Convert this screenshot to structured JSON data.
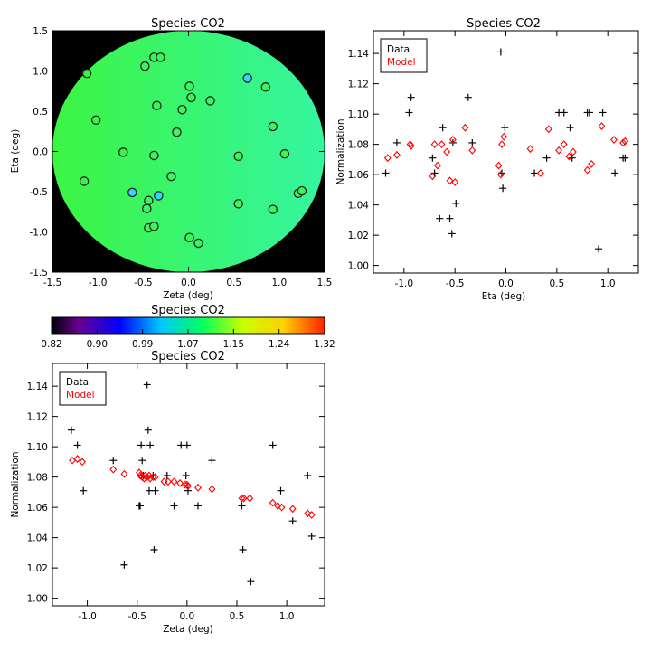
{
  "chart_data": [
    {
      "type": "scatter",
      "title": "Species CO2",
      "xlabel": "Zeta (deg)",
      "ylabel": "Eta (deg)",
      "xlim": [
        -1.5,
        1.5
      ],
      "ylim": [
        -1.5,
        1.5
      ],
      "xticks": [
        -1.5,
        -1.0,
        -0.5,
        0.0,
        0.5,
        1.0,
        1.5
      ],
      "xtick_labels": [
        "-1.5",
        "-1.0",
        "-0.5",
        "0.0",
        "0.5",
        "1.0",
        "1.5"
      ],
      "yticks": [
        -1.5,
        -1.0,
        -0.5,
        0.0,
        0.5,
        1.0,
        1.5
      ],
      "ytick_labels": [
        "-1.5",
        "-1.0",
        "-0.5",
        "0.0",
        "0.5",
        "1.0",
        "1.5"
      ],
      "background": "black outside a circular green-to-cyan model field",
      "field_colors": [
        "#3cf542",
        "#35f5a0"
      ],
      "points": [
        {
          "zeta": -1.12,
          "eta": 0.97,
          "color": "#38f545"
        },
        {
          "zeta": -1.02,
          "eta": 0.39,
          "color": "#38f545"
        },
        {
          "zeta": -1.15,
          "eta": -0.37,
          "color": "#38f545"
        },
        {
          "zeta": -0.72,
          "eta": -0.01,
          "color": "#38f545"
        },
        {
          "zeta": -0.48,
          "eta": 1.06,
          "color": "#3cf55a"
        },
        {
          "zeta": -0.38,
          "eta": 1.17,
          "color": "#3cf55a"
        },
        {
          "zeta": -0.31,
          "eta": 1.17,
          "color": "#3cf55a"
        },
        {
          "zeta": -0.35,
          "eta": 0.57,
          "color": "#3cf55a"
        },
        {
          "zeta": -0.38,
          "eta": -0.05,
          "color": "#3cf55a"
        },
        {
          "zeta": -0.62,
          "eta": -0.51,
          "color": "#30d8ff"
        },
        {
          "zeta": -0.33,
          "eta": -0.55,
          "color": "#30d8ff"
        },
        {
          "zeta": -0.44,
          "eta": -0.61,
          "color": "#3cf55a"
        },
        {
          "zeta": -0.46,
          "eta": -0.71,
          "color": "#3cf55a"
        },
        {
          "zeta": -0.44,
          "eta": -0.95,
          "color": "#3cf55a"
        },
        {
          "zeta": -0.38,
          "eta": -0.93,
          "color": "#3cf55a"
        },
        {
          "zeta": -0.19,
          "eta": -0.31,
          "color": "#3cf55a"
        },
        {
          "zeta": -0.13,
          "eta": 0.24,
          "color": "#3cf55a"
        },
        {
          "zeta": -0.07,
          "eta": 0.52,
          "color": "#3cf55a"
        },
        {
          "zeta": 0.01,
          "eta": 0.81,
          "color": "#3cf55a"
        },
        {
          "zeta": 0.03,
          "eta": 0.67,
          "color": "#3cf55a"
        },
        {
          "zeta": 0.24,
          "eta": 0.63,
          "color": "#3cf55a"
        },
        {
          "zeta": 0.01,
          "eta": -1.07,
          "color": "#3cf55a"
        },
        {
          "zeta": 0.11,
          "eta": -1.14,
          "color": "#3cf55a"
        },
        {
          "zeta": 0.55,
          "eta": -0.06,
          "color": "#3cf55a"
        },
        {
          "zeta": 0.55,
          "eta": -0.65,
          "color": "#3cf55a"
        },
        {
          "zeta": 0.65,
          "eta": 0.91,
          "color": "#30d8ff"
        },
        {
          "zeta": 0.85,
          "eta": 0.8,
          "color": "#3cf55a"
        },
        {
          "zeta": 0.93,
          "eta": 0.31,
          "color": "#3cf55a"
        },
        {
          "zeta": 1.06,
          "eta": -0.03,
          "color": "#3cf55a"
        },
        {
          "zeta": 0.93,
          "eta": -0.72,
          "color": "#3cf55a"
        },
        {
          "zeta": 1.21,
          "eta": -0.52,
          "color": "#3cf55a"
        },
        {
          "zeta": 1.25,
          "eta": -0.49,
          "color": "#3cf55a"
        }
      ]
    },
    {
      "type": "scatter",
      "title": "Species CO2",
      "xlabel": "Eta (deg)",
      "ylabel": "Normalization",
      "xlim": [
        -1.3,
        1.3
      ],
      "ylim": [
        0.995,
        1.155
      ],
      "xticks": [
        -1.0,
        -0.5,
        0.0,
        0.5,
        1.0
      ],
      "xtick_labels": [
        "-1.0",
        "-0.5",
        "0.0",
        "0.5",
        "1.0"
      ],
      "yticks": [
        1.0,
        1.02,
        1.04,
        1.06,
        1.08,
        1.1,
        1.12,
        1.14
      ],
      "ytick_labels": [
        "1.00",
        "1.02",
        "1.04",
        "1.06",
        "1.08",
        "1.10",
        "1.12",
        "1.14"
      ],
      "legend": [
        "Data",
        "Model"
      ],
      "legend_position": "top-left",
      "series": [
        {
          "name": "Data",
          "color": "#000000",
          "marker": "plus",
          "x": [
            -1.18,
            -1.07,
            -0.95,
            -0.93,
            -0.72,
            -0.7,
            -0.65,
            -0.62,
            -0.55,
            -0.53,
            -0.52,
            -0.49,
            -0.37,
            -0.33,
            -0.05,
            -0.04,
            -0.03,
            -0.01,
            0.28,
            0.4,
            0.52,
            0.57,
            0.63,
            0.65,
            0.8,
            0.82,
            0.91,
            0.95,
            1.07,
            1.15,
            1.17
          ],
          "y": [
            1.061,
            1.081,
            1.101,
            1.111,
            1.071,
            1.061,
            1.031,
            1.091,
            1.031,
            1.021,
            1.081,
            1.041,
            1.111,
            1.081,
            1.141,
            1.061,
            1.051,
            1.091,
            1.061,
            1.071,
            1.101,
            1.101,
            1.091,
            1.071,
            1.101,
            1.101,
            1.011,
            1.101,
            1.061,
            1.071,
            1.071
          ]
        },
        {
          "name": "Model",
          "color": "#ff0000",
          "marker": "diamond",
          "x": [
            -1.16,
            -1.07,
            -0.94,
            -0.93,
            -0.72,
            -0.7,
            -0.67,
            -0.63,
            -0.58,
            -0.55,
            -0.52,
            -0.5,
            -0.4,
            -0.33,
            -0.07,
            -0.05,
            -0.04,
            -0.02,
            0.24,
            0.34,
            0.42,
            0.52,
            0.57,
            0.62,
            0.66,
            0.8,
            0.84,
            0.94,
            1.06,
            1.15,
            1.17
          ],
          "y": [
            1.071,
            1.073,
            1.08,
            1.079,
            1.059,
            1.08,
            1.066,
            1.08,
            1.075,
            1.056,
            1.083,
            1.055,
            1.091,
            1.076,
            1.066,
            1.06,
            1.08,
            1.085,
            1.077,
            1.061,
            1.09,
            1.076,
            1.08,
            1.072,
            1.075,
            1.063,
            1.067,
            1.092,
            1.083,
            1.081,
            1.082
          ]
        }
      ]
    },
    {
      "type": "colorbar",
      "title": "Species CO2",
      "tick_labels": [
        "0.82",
        "0.90",
        "0.99",
        "1.07",
        "1.15",
        "1.24",
        "1.32"
      ],
      "range": [
        0.82,
        1.32
      ],
      "colormap": [
        "#000000",
        "#6a0090",
        "#0000ff",
        "#00c8ff",
        "#00ff60",
        "#c8ff00",
        "#ffd000",
        "#ff2000"
      ]
    },
    {
      "type": "scatter",
      "title": "Species CO2",
      "xlabel": "Zeta (deg)",
      "ylabel": "Normalization",
      "xlim": [
        -1.35,
        1.38
      ],
      "ylim": [
        0.995,
        1.155
      ],
      "xticks": [
        -1.0,
        -0.5,
        0.0,
        0.5,
        1.0
      ],
      "xtick_labels": [
        "-1.0",
        "-0.5",
        "0.0",
        "0.5",
        "1.0"
      ],
      "yticks": [
        1.0,
        1.02,
        1.04,
        1.06,
        1.08,
        1.1,
        1.12,
        1.14
      ],
      "ytick_labels": [
        "1.00",
        "1.02",
        "1.04",
        "1.06",
        "1.08",
        "1.10",
        "1.12",
        "1.14"
      ],
      "legend": [
        "Data",
        "Model"
      ],
      "legend_position": "top-left",
      "series": [
        {
          "name": "Data",
          "color": "#000000",
          "marker": "plus",
          "x": [
            -1.16,
            -1.1,
            -1.04,
            -0.74,
            -0.63,
            -0.48,
            -0.47,
            -0.46,
            -0.45,
            -0.44,
            -0.4,
            -0.39,
            -0.38,
            -0.37,
            -0.34,
            -0.33,
            -0.32,
            -0.2,
            -0.13,
            -0.06,
            -0.01,
            0.0,
            0.01,
            0.11,
            0.25,
            0.55,
            0.56,
            0.64,
            0.86,
            0.94,
            1.06,
            1.21,
            1.25
          ],
          "y": [
            1.111,
            1.101,
            1.071,
            1.091,
            1.022,
            1.061,
            1.061,
            1.101,
            1.091,
            1.081,
            1.141,
            1.111,
            1.071,
            1.101,
            1.081,
            1.032,
            1.071,
            1.081,
            1.061,
            1.101,
            1.081,
            1.101,
            1.071,
            1.061,
            1.091,
            1.061,
            1.032,
            1.011,
            1.101,
            1.071,
            1.051,
            1.081,
            1.041
          ]
        },
        {
          "name": "Model",
          "color": "#ff0000",
          "marker": "diamond",
          "x": [
            -1.15,
            -1.1,
            -1.05,
            -0.74,
            -0.63,
            -0.48,
            -0.47,
            -0.45,
            -0.43,
            -0.42,
            -0.4,
            -0.38,
            -0.37,
            -0.34,
            -0.32,
            -0.23,
            -0.19,
            -0.13,
            -0.07,
            -0.02,
            0.0,
            0.01,
            0.11,
            0.25,
            0.55,
            0.57,
            0.63,
            0.86,
            0.91,
            0.95,
            1.06,
            1.21,
            1.25
          ],
          "y": [
            1.091,
            1.092,
            1.09,
            1.085,
            1.082,
            1.083,
            1.081,
            1.08,
            1.079,
            1.081,
            1.08,
            1.081,
            1.079,
            1.08,
            1.08,
            1.077,
            1.077,
            1.077,
            1.076,
            1.075,
            1.075,
            1.074,
            1.073,
            1.072,
            1.066,
            1.066,
            1.066,
            1.063,
            1.061,
            1.06,
            1.059,
            1.056,
            1.055
          ]
        }
      ]
    }
  ]
}
